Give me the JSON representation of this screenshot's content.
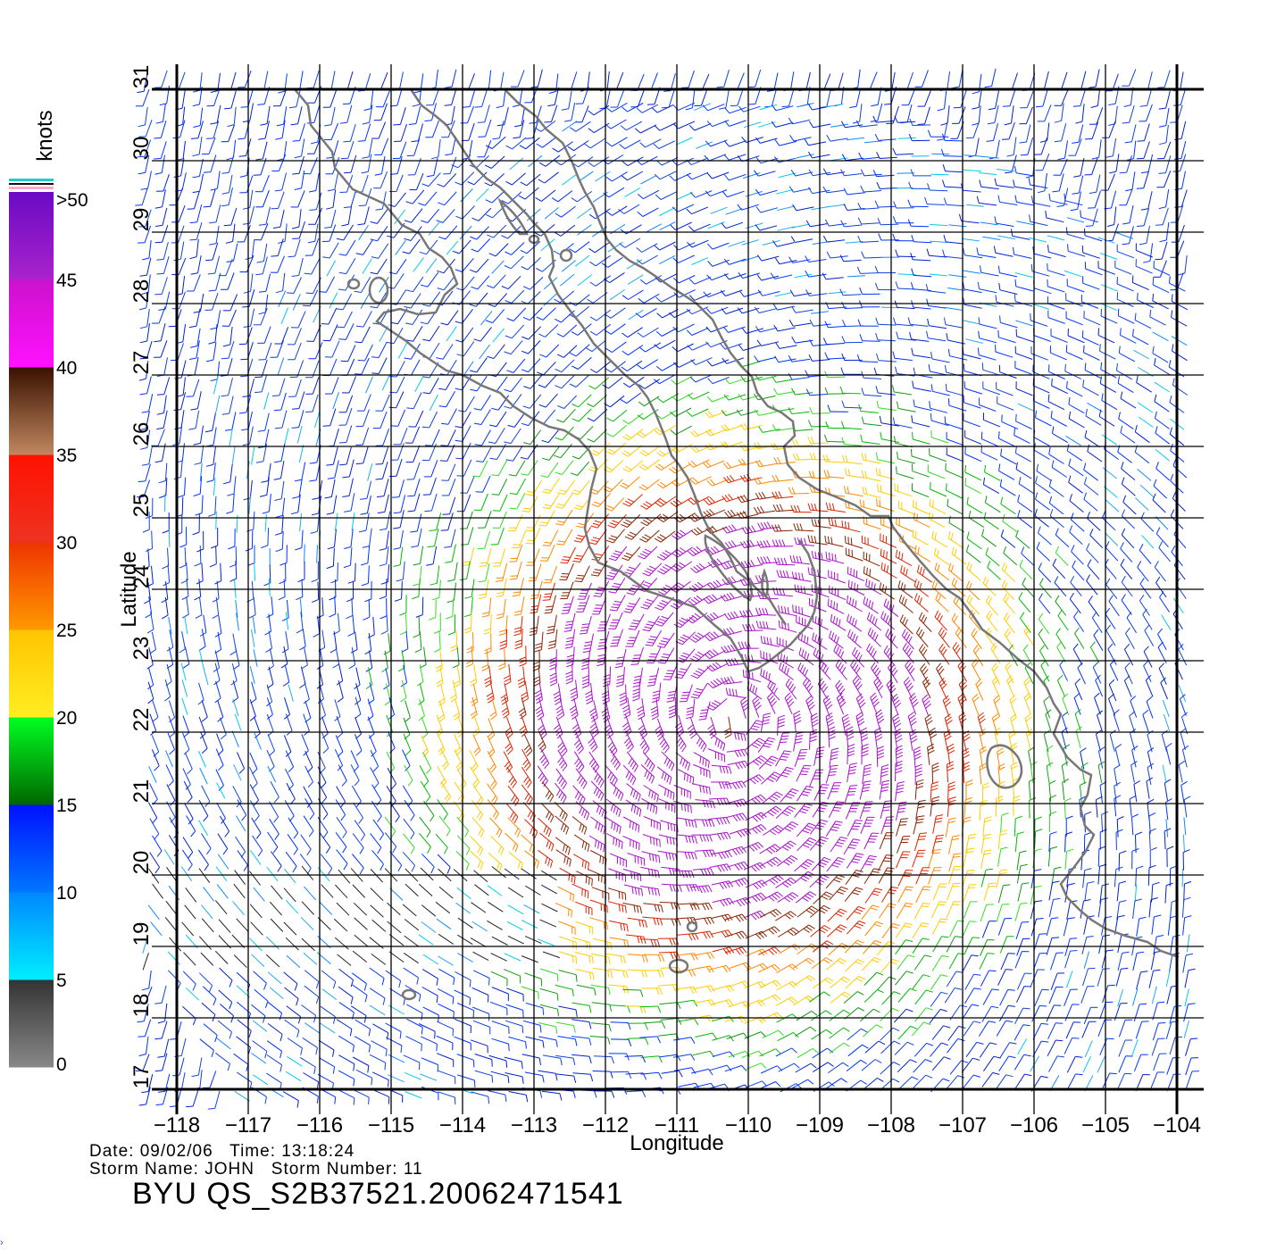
{
  "map": {
    "x_axis": {
      "label": "Longitude",
      "ticks": [
        -118,
        -117,
        -116,
        -115,
        -114,
        -113,
        -112,
        -111,
        -110,
        -109,
        -108,
        -107,
        -106,
        -105,
        -104
      ],
      "tick_labels": [
        "−118",
        "−117",
        "−116",
        "−115",
        "−114",
        "−113",
        "−112",
        "−111",
        "−110",
        "−109",
        "−108",
        "−107",
        "−106",
        "−105",
        "−104"
      ]
    },
    "y_axis": {
      "label": "Latitude",
      "ticks": [
        17,
        18,
        19,
        20,
        21,
        22,
        23,
        24,
        25,
        26,
        27,
        28,
        29,
        30,
        31
      ],
      "tick_labels": [
        "17",
        "18",
        "19",
        "20",
        "21",
        "22",
        "23",
        "24",
        "25",
        "26",
        "27",
        "28",
        "29",
        "30",
        "31"
      ]
    },
    "lon_range": [
      -118,
      -104
    ],
    "lat_range": [
      17,
      31
    ],
    "grid": true,
    "storm_center": {
      "lon": -110.2,
      "lat": 22.2
    }
  },
  "legend": {
    "unit": "knots",
    "labels": [
      {
        "value": ">50",
        "at": 50
      },
      {
        "value": "45",
        "at": 45
      },
      {
        "value": "40",
        "at": 40
      },
      {
        "value": "35",
        "at": 35
      },
      {
        "value": "30",
        "at": 30
      },
      {
        "value": "25",
        "at": 25
      },
      {
        "value": "20",
        "at": 20
      },
      {
        "value": "15",
        "at": 15
      },
      {
        "value": "10",
        "at": 10
      },
      {
        "value": "5",
        "at": 5
      },
      {
        "value": "0",
        "at": 0
      }
    ],
    "color_stops": [
      {
        "from": 0,
        "to": 5,
        "top": "#333333",
        "bottom": "#888888"
      },
      {
        "from": 5,
        "to": 10,
        "top": "#0088ff",
        "bottom": "#00eeff"
      },
      {
        "from": 10,
        "to": 15,
        "top": "#0011ff",
        "bottom": "#0077ff"
      },
      {
        "from": 15,
        "to": 20,
        "top": "#00ff22",
        "bottom": "#006600"
      },
      {
        "from": 20,
        "to": 25,
        "top": "#ffc400",
        "bottom": "#ffee22"
      },
      {
        "from": 25,
        "to": 30,
        "top": "#ee3300",
        "bottom": "#ff9900"
      },
      {
        "from": 30,
        "to": 35,
        "top": "#ff1100",
        "bottom": "#ee3322"
      },
      {
        "from": 35,
        "to": 40,
        "top": "#3a1000",
        "bottom": "#c08860"
      },
      {
        "from": 40,
        "to": 45,
        "top": "#cc11cc",
        "bottom": "#ff11ff"
      },
      {
        "from": 45,
        "to": 50,
        "top": "#6a0bc4",
        "bottom": "#aa22cc"
      }
    ]
  },
  "info": {
    "date_label": "Date:",
    "date": "09/02/06",
    "time_label": "Time:",
    "time": "13:18:24",
    "storm_name_label": "Storm Name:",
    "storm_name": "JOHN",
    "storm_number_label": "Storm Number:",
    "storm_number": "11",
    "file_id": "BYU QS_S2B37521.20062471541"
  },
  "colors": {
    "coastline": "#777777",
    "grid": "#000000"
  }
}
